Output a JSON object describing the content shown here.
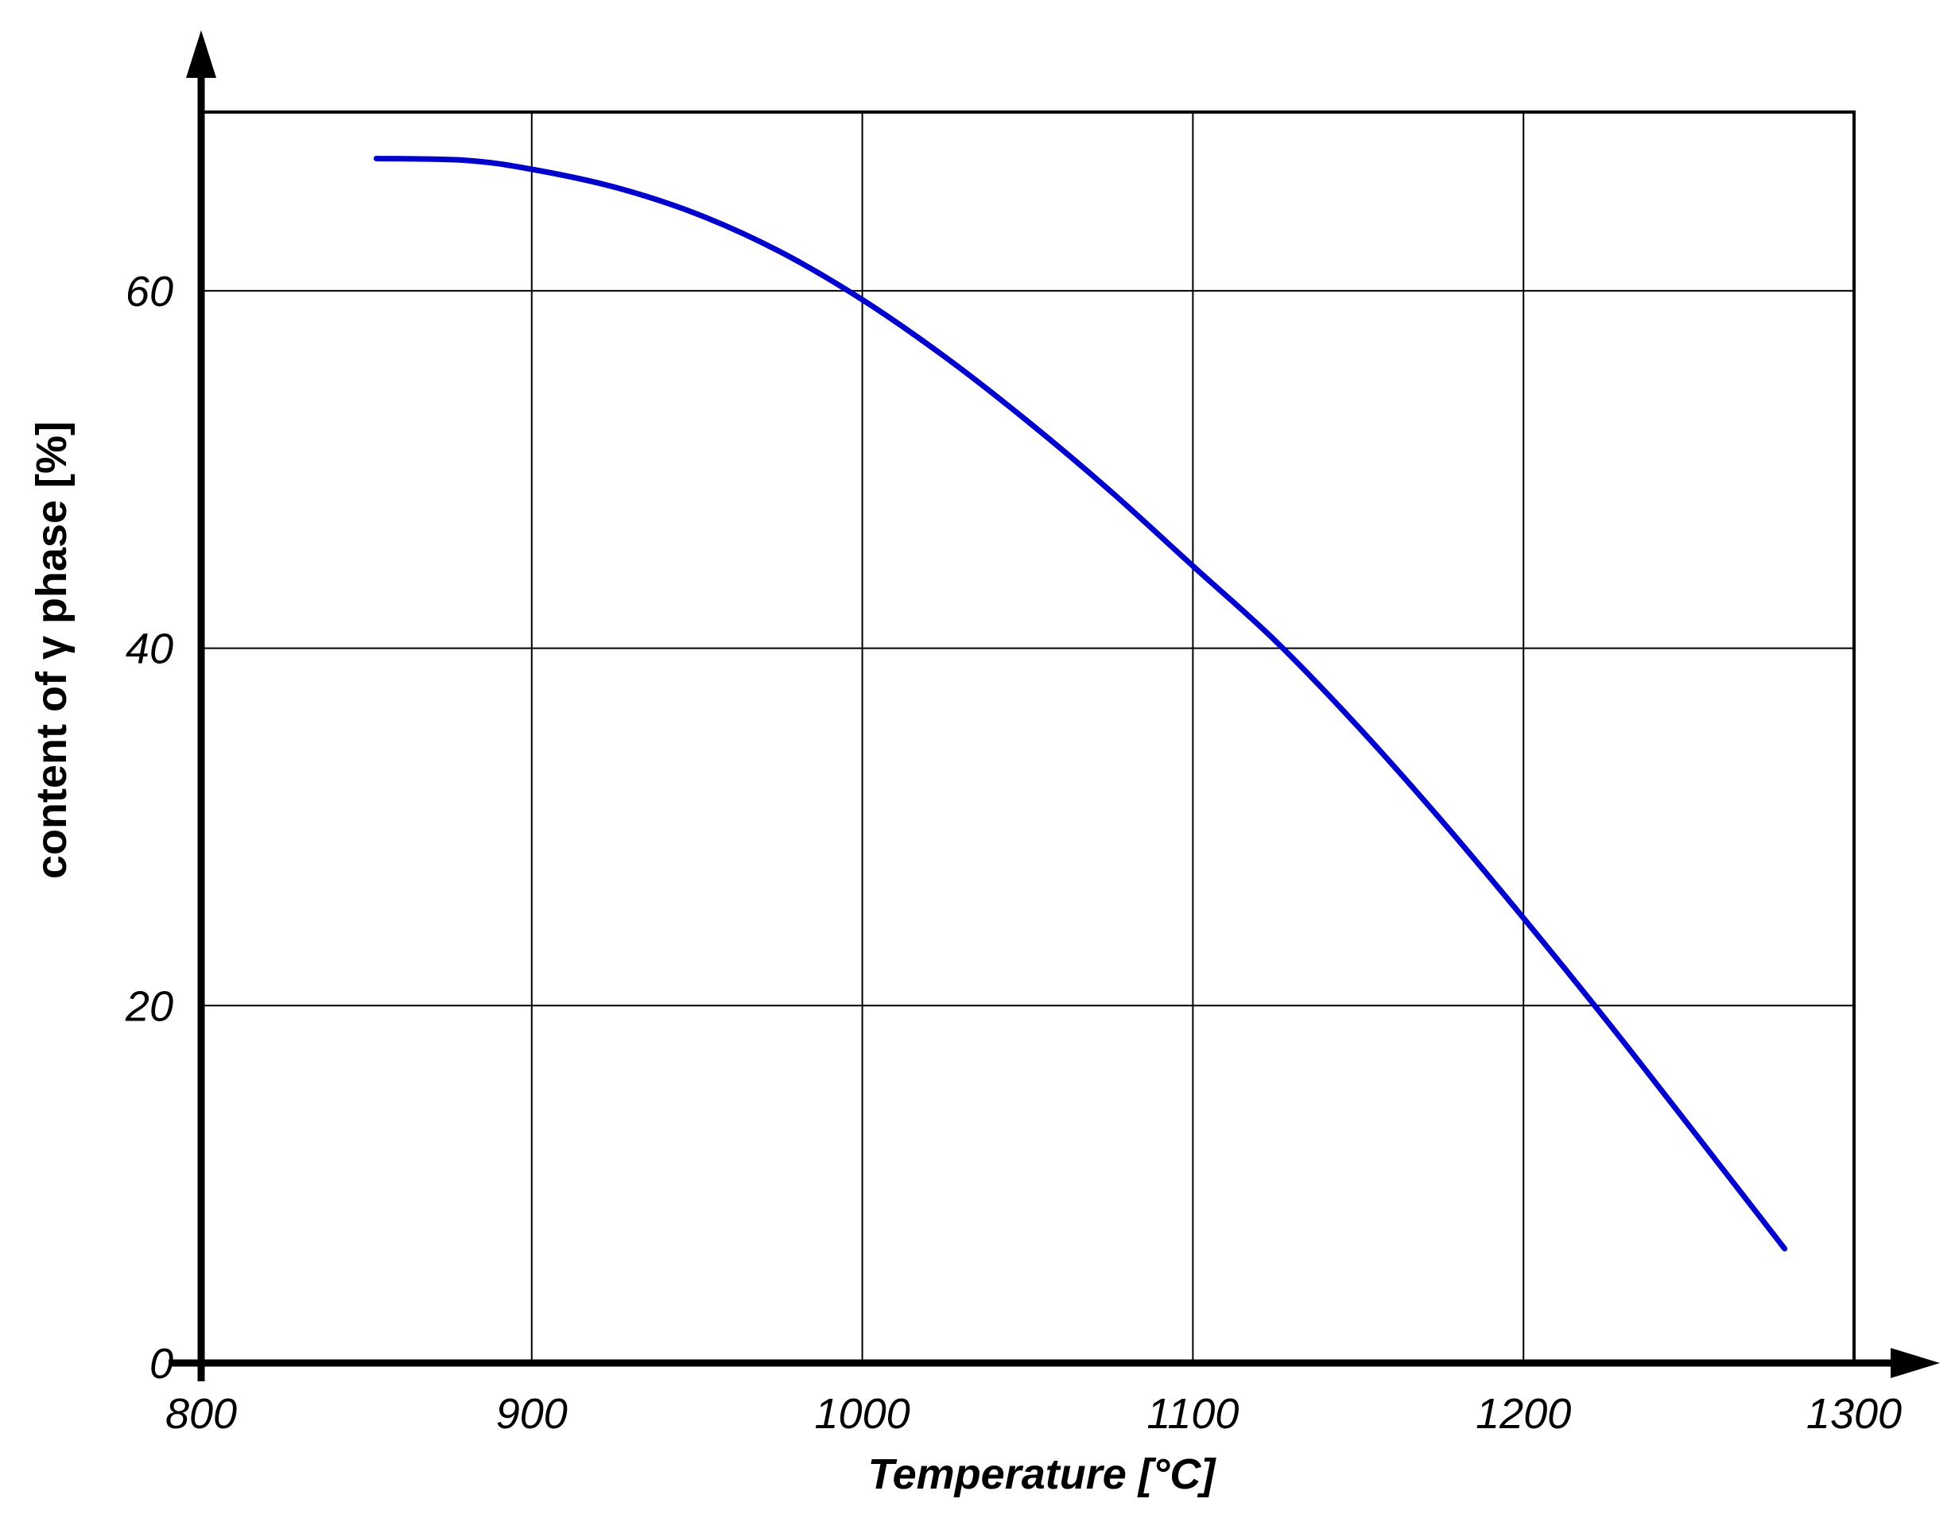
{
  "chart_data": {
    "type": "line",
    "xlabel": "Temperature [°C]",
    "ylabel": "content of γ phase  [%]",
    "xlim": [
      800,
      1300
    ],
    "ylim": [
      0,
      70
    ],
    "x_ticks": [
      800,
      900,
      1000,
      1100,
      1200,
      1300
    ],
    "y_ticks": [
      0,
      20,
      40,
      60
    ],
    "x_tick_labels": [
      "800",
      "900",
      "1000",
      "1100",
      "1200",
      "1300"
    ],
    "y_tick_labels": [
      "0",
      "20",
      "40",
      "60"
    ],
    "grid": true,
    "series": [
      {
        "color": "#0000cc",
        "x": [
          853,
          880,
          900,
          925,
          950,
          975,
          1000,
          1025,
          1050,
          1075,
          1100,
          1125,
          1150,
          1175,
          1200,
          1225,
          1250,
          1279
        ],
        "y": [
          67.4,
          67.3,
          66.8,
          65.8,
          64.3,
          62.2,
          59.5,
          56.3,
          52.7,
          48.8,
          44.6,
          40.4,
          35.6,
          30.4,
          24.9,
          19.2,
          13.3,
          6.4
        ]
      }
    ]
  }
}
